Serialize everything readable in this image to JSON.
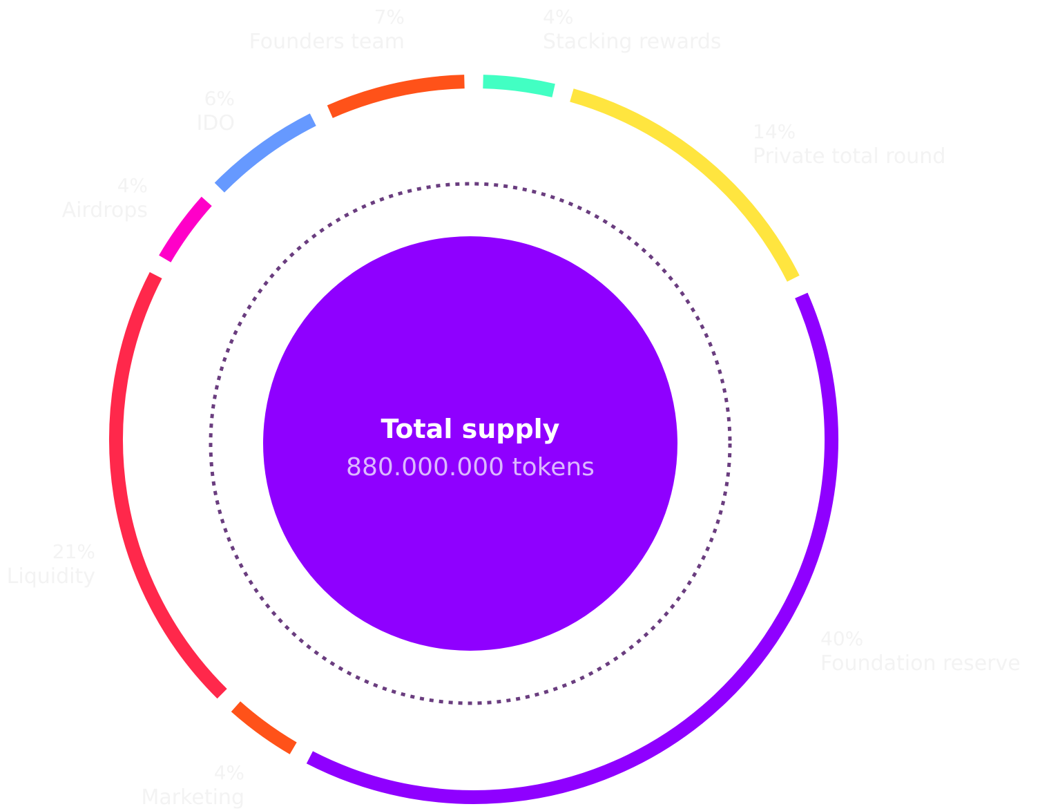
{
  "chart_data": {
    "type": "pie",
    "title": "Total supply",
    "subtitle": "880.000.000 tokens",
    "slices": [
      {
        "label": "Stacking rewards",
        "percent": 4,
        "display": "4%",
        "color": "#42ffc3"
      },
      {
        "label": "Private total round",
        "percent": 14,
        "display": "14%",
        "color": "#ffe53f"
      },
      {
        "label": "Foundation reserve",
        "percent": 40,
        "display": "40%",
        "color": "#8f00ff"
      },
      {
        "label": "Marketing",
        "percent": 4,
        "display": "4%",
        "color": "#ff5219"
      },
      {
        "label": "Liquidity",
        "percent": 21,
        "display": "21%",
        "color": "#ff284b"
      },
      {
        "label": "Airdrops",
        "percent": 4,
        "display": "4%",
        "color": "#ff00c8"
      },
      {
        "label": "IDO",
        "percent": 6,
        "display": "6%",
        "color": "#6699ff"
      },
      {
        "label": "Founders team",
        "percent": 7,
        "display": "7%",
        "color": "#ff5219"
      }
    ],
    "center_color": "#8f00ff",
    "dotted_ring_color": "#6a3d7f"
  }
}
